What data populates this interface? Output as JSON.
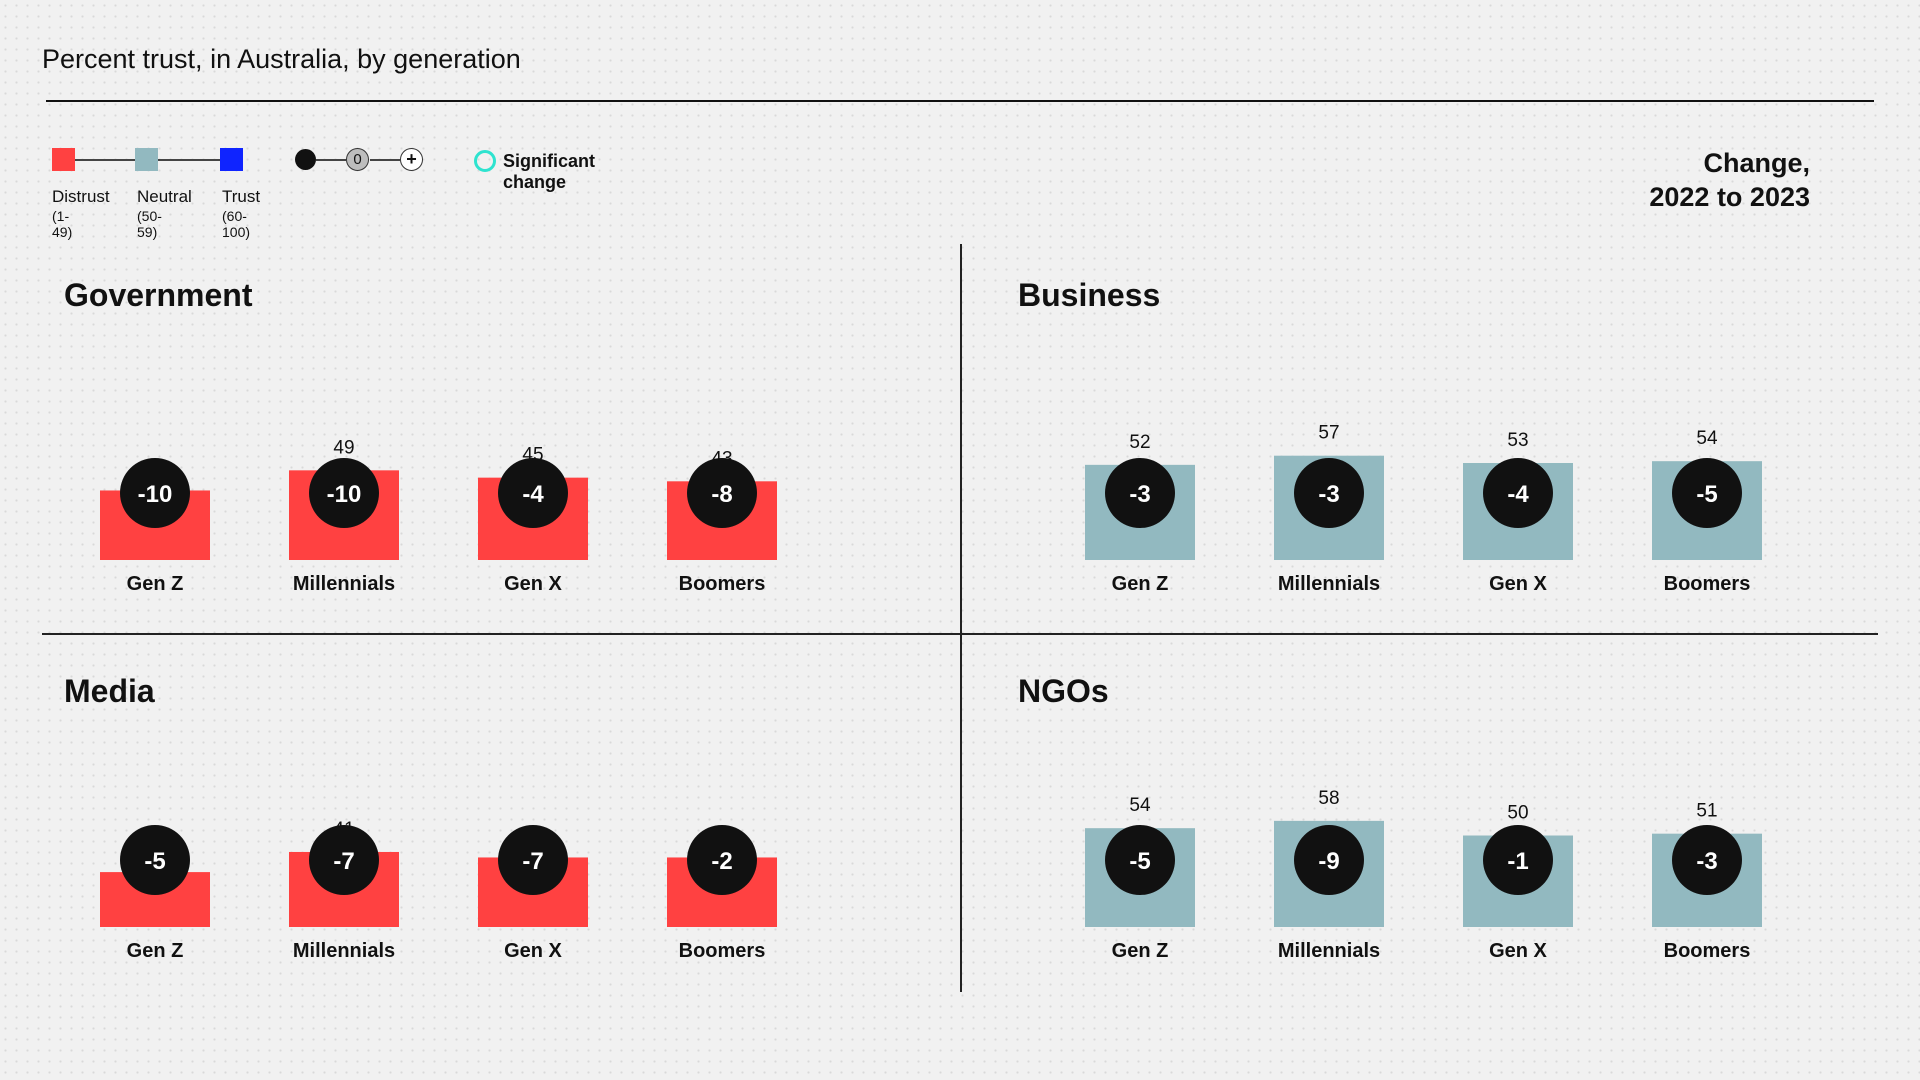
{
  "title": "Percent trust, in Australia, by generation",
  "legend": {
    "items": [
      {
        "label": "Distrust",
        "range": "(1-49)",
        "color": "#ff4141"
      },
      {
        "label": "Neutral",
        "range": "(50-59)",
        "color": "#92b9c0"
      },
      {
        "label": "Trust",
        "range": "(60-100)",
        "color": "#0f24ff"
      }
    ],
    "change_zero": "0",
    "change_plus": "+",
    "significant_label": "Significant change",
    "significant_color": "#2ee3cf"
  },
  "change_header": {
    "line1": "Change,",
    "line2": "2022 to 2023"
  },
  "colors": {
    "distrust": "#ff4141",
    "neutral": "#92b9c0",
    "trust": "#0f24ff",
    "circle": "#111111"
  },
  "chart_data": [
    {
      "type": "bar",
      "title": "Government",
      "categories": [
        "Gen Z",
        "Millennials",
        "Gen X",
        "Boomers"
      ],
      "values": [
        38,
        49,
        45,
        43
      ],
      "change": [
        -10,
        -10,
        -4,
        -8
      ]
    },
    {
      "type": "bar",
      "title": "Business",
      "categories": [
        "Gen Z",
        "Millennials",
        "Gen X",
        "Boomers"
      ],
      "values": [
        52,
        57,
        53,
        54
      ],
      "change": [
        -3,
        -3,
        -4,
        -5
      ]
    },
    {
      "type": "bar",
      "title": "Media",
      "categories": [
        "Gen Z",
        "Millennials",
        "Gen X",
        "Boomers"
      ],
      "values": [
        30,
        41,
        38,
        38
      ],
      "change": [
        -5,
        -7,
        -7,
        -2
      ]
    },
    {
      "type": "bar",
      "title": "NGOs",
      "categories": [
        "Gen Z",
        "Millennials",
        "Gen X",
        "Boomers"
      ],
      "values": [
        54,
        58,
        50,
        51
      ],
      "change": [
        -5,
        -9,
        -1,
        -3
      ]
    }
  ]
}
